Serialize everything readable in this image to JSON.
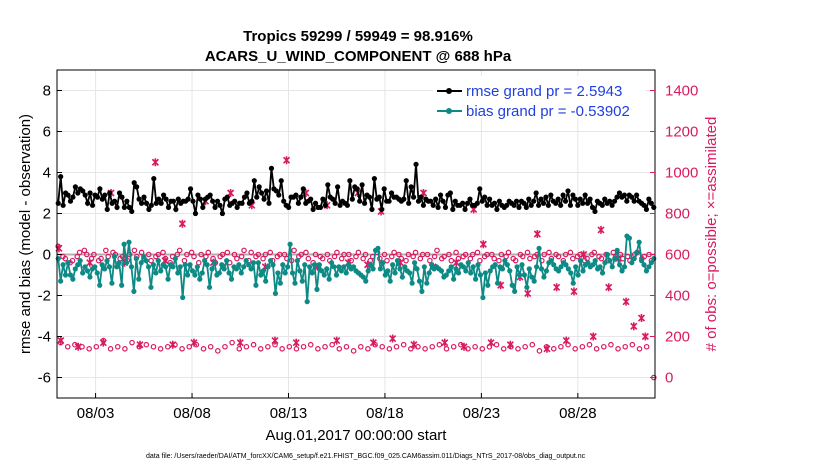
{
  "chart_data": {
    "type": "line",
    "title": "Tropics 59299 / 59949 = 98.916%",
    "subtitle": "ACARS_U_WIND_COMPONENT @ 688 hPa",
    "xlabel": "Aug.01,2017 00:00:00 start",
    "ylabel_left": "rmse and bias (model - observation)",
    "ylabel_right": "# of obs: o=possible; ×=assimilated",
    "xlim": [
      0.5,
      31.5
    ],
    "ylim_left": [
      -7,
      9
    ],
    "ylim_right": [
      -100,
      1500
    ],
    "x_ticks": [
      {
        "pos": 2.5,
        "label": "08/03"
      },
      {
        "pos": 7.5,
        "label": "08/08"
      },
      {
        "pos": 12.5,
        "label": "08/13"
      },
      {
        "pos": 17.5,
        "label": "08/18"
      },
      {
        "pos": 22.5,
        "label": "08/23"
      },
      {
        "pos": 27.5,
        "label": "08/28"
      }
    ],
    "y_ticks_left": [
      "8",
      "6",
      "4",
      "2",
      "0",
      "-2",
      "-4",
      "-6"
    ],
    "y_ticks_right": [
      "1400",
      "1200",
      "1000",
      "800",
      "600",
      "400",
      "200",
      "0"
    ],
    "legend": [
      {
        "label": "rmse grand pr = 2.5943",
        "color": "#000000"
      },
      {
        "label": "bias grand pr = -0.53902",
        "color": "#0e8a86"
      }
    ],
    "colors": {
      "rmse": "#000000",
      "bias": "#0e8a86",
      "obs": "#d81b60",
      "zero_line": "#b0b0b0",
      "legend_text": "#1f3fe0"
    },
    "rmse": [
      2.5,
      3.8,
      2.4,
      3.0,
      2.9,
      2.6,
      2.8,
      3.3,
      3.0,
      3.2,
      3.1,
      2.9,
      2.5,
      3.0,
      2.4,
      2.9,
      2.8,
      3.2,
      2.7,
      2.9,
      2.2,
      3.0,
      2.5,
      2.6,
      2.3,
      3.0,
      2.8,
      2.3,
      2.6,
      2.3,
      2.1,
      3.5,
      3.3,
      2.7,
      2.5,
      2.8,
      2.5,
      2.2,
      2.4,
      3.7,
      2.5,
      2.7,
      2.5,
      2.9,
      2.7,
      2.3,
      2.6,
      2.6,
      2.2,
      2.7,
      2.5,
      2.6,
      2.6,
      2.7,
      3.2,
      2.6,
      2.0,
      2.9,
      2.7,
      2.3,
      2.7,
      2.8,
      2.9,
      2.6,
      2.3,
      2.6,
      2.4,
      2.0,
      2.7,
      2.8,
      2.4,
      2.5,
      2.6,
      2.3,
      2.5,
      2.5,
      2.8,
      3.0,
      2.5,
      2.6,
      3.6,
      2.8,
      3.3,
      3.0,
      2.7,
      3.1,
      2.5,
      4.2,
      3.2,
      3.1,
      2.9,
      3.6,
      2.6,
      2.4,
      2.3,
      2.8,
      2.8,
      2.9,
      2.5,
      2.8,
      3.2,
      2.5,
      2.6,
      2.7,
      2.2,
      2.5,
      2.3,
      2.3,
      2.7,
      2.4,
      3.4,
      2.8,
      2.7,
      2.5,
      3.3,
      2.4,
      2.6,
      2.5,
      2.4,
      3.6,
      2.7,
      3.3,
      3.2,
      2.6,
      3.4,
      2.5,
      2.9,
      2.8,
      2.2,
      3.7,
      2.7,
      2.8,
      2.2,
      3.2,
      2.6,
      2.6,
      3.0,
      2.8,
      2.8,
      2.7,
      2.6,
      2.7,
      3.6,
      2.5,
      3.3,
      2.8,
      4.4,
      2.6,
      2.8,
      2.4,
      2.7,
      2.6,
      2.6,
      2.4,
      2.7,
      2.3,
      2.9,
      2.6,
      2.3,
      2.9,
      3.0,
      2.2,
      2.6,
      2.4,
      2.4,
      2.5,
      2.2,
      2.5,
      2.7,
      2.4,
      2.4,
      2.5,
      3.2,
      2.6,
      2.8,
      2.4,
      2.7,
      2.4,
      2.5,
      2.2,
      2.6,
      2.4,
      2.3,
      2.4,
      2.6,
      2.5,
      2.4,
      2.6,
      2.3,
      2.6,
      2.5,
      2.3,
      2.7,
      2.4,
      2.6,
      3.0,
      2.4,
      2.7,
      2.5,
      2.8,
      2.4,
      2.9,
      2.6,
      2.5,
      2.7,
      2.4,
      2.9,
      2.6,
      3.1,
      2.4,
      2.9,
      2.7,
      2.4,
      2.7,
      2.5,
      2.9,
      2.5,
      2.7,
      2.3,
      2.1,
      2.6,
      2.5,
      2.4,
      2.7,
      2.5,
      2.6,
      2.4,
      2.6,
      2.8,
      3.0,
      2.8,
      2.9,
      2.6,
      2.9,
      2.8,
      2.6,
      2.9,
      2.6,
      2.5,
      2.4,
      2.2,
      2.7,
      2.5,
      2.3
    ],
    "bias": [
      -0.2,
      -1.3,
      -0.5,
      -1.0,
      -0.4,
      -1.0,
      -1.2,
      -0.7,
      -0.5,
      -0.3,
      -0.9,
      -0.6,
      -0.8,
      -1.1,
      -0.7,
      -0.6,
      -0.9,
      -1.5,
      -0.5,
      -0.7,
      -0.3,
      -0.6,
      -1.4,
      -0.1,
      -0.6,
      -0.4,
      -1.5,
      0.5,
      -0.4,
      0.6,
      -0.6,
      -1.8,
      -0.2,
      -1.2,
      -0.4,
      -0.1,
      -0.3,
      -0.6,
      -1.6,
      -0.5,
      -0.9,
      -0.3,
      -0.8,
      -0.5,
      -0.6,
      -1.2,
      -0.5,
      -0.6,
      -0.2,
      -0.9,
      -0.6,
      -2.1,
      -0.5,
      -1.0,
      -0.5,
      -0.8,
      -1.0,
      -0.6,
      -1.2,
      -0.9,
      -0.3,
      -0.5,
      -1.6,
      -0.7,
      -0.4,
      -1.0,
      -0.9,
      -0.5,
      -0.7,
      -0.3,
      -0.9,
      -1.2,
      -0.6,
      -0.7,
      -0.5,
      -0.9,
      -0.6,
      -0.3,
      -0.5,
      -0.7,
      -0.4,
      -1.5,
      -0.4,
      -1.0,
      -0.8,
      -1.3,
      -0.6,
      -0.3,
      -0.5,
      -1.9,
      -0.9,
      -1.4,
      -0.5,
      -0.9,
      -0.6,
      0.5,
      -0.9,
      -1.4,
      -0.3,
      -0.8,
      -1.3,
      -0.5,
      -2.3,
      -0.6,
      -0.9,
      -0.5,
      -1.7,
      -0.5,
      -0.8,
      -1.0,
      -0.7,
      -1.2,
      -0.4,
      -0.6,
      -1.0,
      -0.6,
      -0.8,
      -0.6,
      -0.9,
      -0.5,
      -0.7,
      -0.6,
      -0.8,
      -0.9,
      -1.0,
      -1.1,
      -1.3,
      -0.8,
      -0.5,
      -0.7,
      0.2,
      0.3,
      -0.7,
      -0.4,
      -1.0,
      -0.8,
      -1.3,
      -0.5,
      -0.9,
      -0.3,
      -0.7,
      -1.1,
      -0.6,
      -0.8,
      -0.9,
      -1.4,
      -0.4,
      -0.7,
      -1.3,
      -1.8,
      -0.6,
      -1.4,
      -0.9,
      -0.5,
      -0.7,
      -0.6,
      -0.7,
      -0.8,
      -1.1,
      -1.0,
      -0.8,
      -0.6,
      -1.2,
      -0.7,
      -0.9,
      -0.5,
      -0.6,
      -0.8,
      -0.4,
      -0.9,
      -0.6,
      -1.2,
      -0.5,
      -1.0,
      -2.1,
      -0.9,
      -1.5,
      -0.8,
      -0.6,
      -0.5,
      -1.4,
      -0.6,
      -0.7,
      -0.3,
      -0.5,
      -0.8,
      -1.5,
      -1.8,
      -0.6,
      -1.0,
      -0.5,
      -1.0,
      -1.6,
      -0.7,
      -1.1,
      -1.3,
      -0.6,
      0.3,
      -0.7,
      -1.1,
      -0.8,
      -0.4,
      -0.3,
      -0.5,
      -0.7,
      -0.8,
      -0.6,
      -0.4,
      -0.5,
      -0.7,
      -0.9,
      -1.4,
      -0.6,
      -1.0,
      -0.3,
      -0.8,
      -0.5,
      -0.4,
      -0.6,
      -0.5,
      -0.3,
      -0.7,
      -0.6,
      -0.9,
      -0.4,
      0.0,
      -0.3,
      -0.6,
      -0.2,
      0.2,
      -0.5,
      -0.8,
      -0.6,
      0.9,
      0.8,
      -0.4,
      -0.2,
      0.1,
      0.6,
      -0.3,
      -0.5,
      -0.8,
      -0.6,
      -0.4,
      -0.2
    ],
    "obs_high": [
      640,
      170,
      590,
      580,
      150,
      560,
      570,
      160,
      590,
      610,
      150,
      620,
      600,
      140,
      580,
      600,
      150,
      570,
      580,
      180,
      620,
      590,
      140,
      610,
      600,
      150,
      580,
      590,
      140,
      570,
      600,
      170,
      620,
      590,
      150,
      610,
      580,
      160,
      600,
      570,
      150,
      590,
      600,
      140,
      610,
      580,
      150,
      560,
      590,
      160,
      600,
      620,
      140,
      570,
      600,
      150,
      610,
      590,
      160,
      560,
      600,
      140,
      590,
      610,
      150,
      580,
      560,
      130,
      590,
      600,
      150,
      610,
      560,
      170,
      600,
      580,
      140,
      590,
      620,
      150,
      570,
      610,
      160,
      590,
      600,
      140,
      580,
      600,
      150,
      610,
      570,
      160,
      590,
      600,
      140,
      600,
      580,
      150,
      570,
      620,
      140,
      590,
      600,
      150,
      610,
      580,
      160,
      560,
      600,
      140,
      590,
      580,
      150,
      600,
      570,
      160,
      590,
      610,
      140,
      580,
      600,
      150,
      600,
      570,
      130,
      590,
      610,
      150,
      580,
      600,
      140,
      570,
      590,
      160,
      610,
      580,
      150,
      600,
      570,
      140,
      590,
      610,
      150,
      600,
      580,
      160,
      570,
      600,
      140,
      590,
      610,
      150,
      580,
      600,
      140,
      600,
      570,
      150,
      590,
      620,
      160,
      580,
      590,
      140,
      600,
      570,
      150,
      610,
      580,
      160,
      590,
      600,
      140,
      580,
      600,
      150,
      610,
      570,
      140,
      590,
      600,
      150,
      600,
      580,
      160,
      570,
      600,
      140,
      590,
      610,
      150,
      580,
      570,
      140,
      600,
      590,
      150,
      610,
      580,
      160,
      590,
      600,
      130,
      570,
      600,
      150,
      610,
      580,
      140,
      600,
      590,
      150,
      570,
      600,
      160,
      610,
      580,
      140,
      590,
      600,
      150,
      570,
      580,
      160,
      600,
      610,
      140,
      590,
      580,
      150,
      600,
      570,
      160,
      610,
      590,
      140,
      600,
      580,
      150,
      590,
      570,
      160,
      600,
      610,
      140,
      580,
      590,
      150,
      600,
      570,
      0
    ],
    "obs_mark": [
      [
        0.6,
        630
      ],
      [
        0.7,
        180
      ],
      [
        1.6,
        150
      ],
      [
        2.2,
        560
      ],
      [
        2.9,
        170
      ],
      [
        3.3,
        900
      ],
      [
        4.0,
        560
      ],
      [
        4.8,
        160
      ],
      [
        5.6,
        1050
      ],
      [
        6.1,
        570
      ],
      [
        6.5,
        160
      ],
      [
        7.0,
        750
      ],
      [
        7.6,
        170
      ],
      [
        8.2,
        860
      ],
      [
        8.6,
        560
      ],
      [
        9.1,
        540
      ],
      [
        9.5,
        900
      ],
      [
        10.0,
        170
      ],
      [
        10.6,
        840
      ],
      [
        11.3,
        540
      ],
      [
        11.8,
        180
      ],
      [
        12.4,
        1060
      ],
      [
        12.9,
        170
      ],
      [
        13.4,
        900
      ],
      [
        14.0,
        540
      ],
      [
        14.5,
        840
      ],
      [
        15.0,
        180
      ],
      [
        15.6,
        560
      ],
      [
        16.1,
        900
      ],
      [
        16.6,
        550
      ],
      [
        16.9,
        170
      ],
      [
        17.3,
        810
      ],
      [
        17.9,
        190
      ],
      [
        18.3,
        560
      ],
      [
        19.0,
        160
      ],
      [
        19.5,
        900
      ],
      [
        20.0,
        540
      ],
      [
        20.6,
        170
      ],
      [
        21.2,
        560
      ],
      [
        21.6,
        150
      ],
      [
        22.1,
        820
      ],
      [
        22.6,
        650
      ],
      [
        23.0,
        170
      ],
      [
        23.5,
        450
      ],
      [
        24.0,
        160
      ],
      [
        24.5,
        490
      ],
      [
        24.9,
        410
      ],
      [
        25.4,
        700
      ],
      [
        25.9,
        140
      ],
      [
        26.4,
        440
      ],
      [
        26.9,
        180
      ],
      [
        27.3,
        420
      ],
      [
        27.8,
        600
      ],
      [
        28.3,
        200
      ],
      [
        28.7,
        720
      ],
      [
        29.1,
        440
      ],
      [
        29.6,
        580
      ],
      [
        30.0,
        370
      ],
      [
        30.4,
        250
      ],
      [
        30.8,
        290
      ],
      [
        31.0,
        200
      ]
    ]
  },
  "footer_text": "data file: /Users/raeder/DAI/ATM_forcXX/CAM6_setup/f.e21.FHIST_BGC.f09_025.CAM6assim.011/Diags_NTrS_2017-08/obs_diag_output.nc"
}
